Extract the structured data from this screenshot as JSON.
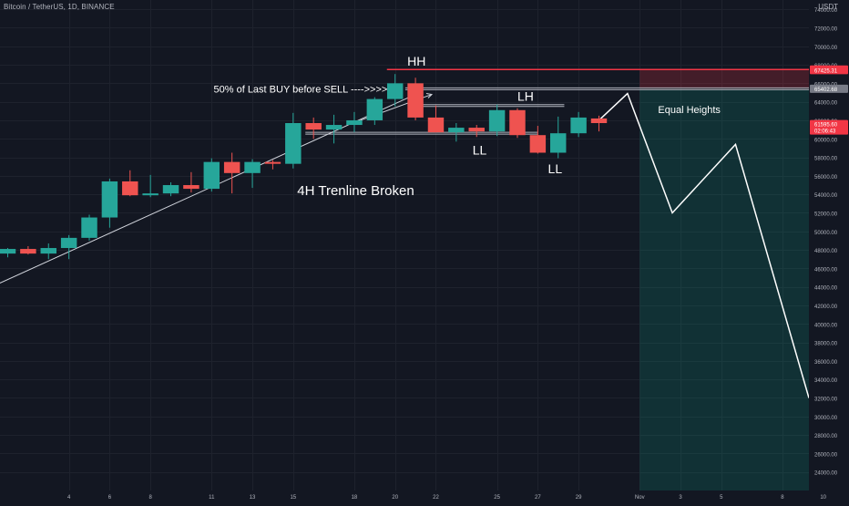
{
  "header": {
    "symbol": "Bitcoin / TetherUS, 1D, BINANCE",
    "currency": "USDT"
  },
  "chart_data": {
    "type": "candlestick",
    "ylim": [
      22000,
      75000
    ],
    "y_ticks": [
      24000,
      26000,
      28000,
      30000,
      32000,
      34000,
      36000,
      38000,
      40000,
      42000,
      44000,
      46000,
      48000,
      50000,
      52000,
      54000,
      56000,
      58000,
      60000,
      62000,
      64000,
      66000,
      68000,
      70000,
      72000,
      74000
    ],
    "y_tick_labels": [
      "24000.00",
      "26000.00",
      "28000.00",
      "30000.00",
      "32000.00",
      "34000.00",
      "36000.00",
      "38000.00",
      "40000.00",
      "42000.00",
      "44000.00",
      "46000.00",
      "48000.00",
      "50000.00",
      "52000.00",
      "54000.00",
      "56000.00",
      "58000.00",
      "60000.00",
      "62000.00",
      "64000.00",
      "66000.00",
      "68000.00",
      "70000.00",
      "72000.00",
      "74000.00"
    ],
    "x_ticks": [
      {
        "label": "4",
        "day": 4
      },
      {
        "label": "6",
        "day": 6
      },
      {
        "label": "8",
        "day": 8
      },
      {
        "label": "11",
        "day": 11
      },
      {
        "label": "13",
        "day": 13
      },
      {
        "label": "15",
        "day": 15
      },
      {
        "label": "18",
        "day": 18
      },
      {
        "label": "20",
        "day": 20
      },
      {
        "label": "22",
        "day": 22
      },
      {
        "label": "25",
        "day": 25
      },
      {
        "label": "27",
        "day": 27
      },
      {
        "label": "29",
        "day": 29
      },
      {
        "label": "Nov",
        "day": 32
      },
      {
        "label": "3",
        "day": 34
      },
      {
        "label": "5",
        "day": 36
      },
      {
        "label": "8",
        "day": 39
      },
      {
        "label": "10",
        "day": 41
      }
    ],
    "candles": [
      {
        "day": 1,
        "open": 47600,
        "high": 48200,
        "low": 47200,
        "close": 48100
      },
      {
        "day": 2,
        "open": 48100,
        "high": 48400,
        "low": 47500,
        "close": 47600
      },
      {
        "day": 3,
        "open": 47600,
        "high": 48700,
        "low": 47000,
        "close": 48200
      },
      {
        "day": 4,
        "open": 48200,
        "high": 49600,
        "low": 47000,
        "close": 49300
      },
      {
        "day": 5,
        "open": 49300,
        "high": 51800,
        "low": 49000,
        "close": 51500
      },
      {
        "day": 6,
        "open": 51500,
        "high": 55700,
        "low": 50400,
        "close": 55400
      },
      {
        "day": 7,
        "open": 55400,
        "high": 56600,
        "low": 53800,
        "close": 53900
      },
      {
        "day": 8,
        "open": 53900,
        "high": 56100,
        "low": 53700,
        "close": 54100
      },
      {
        "day": 9,
        "open": 54100,
        "high": 55300,
        "low": 53800,
        "close": 55000
      },
      {
        "day": 10,
        "open": 55000,
        "high": 56400,
        "low": 54200,
        "close": 54600
      },
      {
        "day": 11,
        "open": 54600,
        "high": 57900,
        "low": 54300,
        "close": 57500
      },
      {
        "day": 12,
        "open": 57500,
        "high": 58500,
        "low": 54100,
        "close": 56300
      },
      {
        "day": 13,
        "open": 56300,
        "high": 57800,
        "low": 54700,
        "close": 57500
      },
      {
        "day": 14,
        "open": 57500,
        "high": 57700,
        "low": 56700,
        "close": 57300
      },
      {
        "day": 15,
        "open": 57300,
        "high": 62800,
        "low": 56800,
        "close": 61700
      },
      {
        "day": 16,
        "open": 61700,
        "high": 62300,
        "low": 60000,
        "close": 61000
      },
      {
        "day": 17,
        "open": 61000,
        "high": 62600,
        "low": 59500,
        "close": 61500
      },
      {
        "day": 18,
        "open": 61500,
        "high": 62900,
        "low": 60700,
        "close": 62000
      },
      {
        "day": 19,
        "open": 62000,
        "high": 64500,
        "low": 61500,
        "close": 64300
      },
      {
        "day": 20,
        "open": 64300,
        "high": 67000,
        "low": 63500,
        "close": 66000
      },
      {
        "day": 21,
        "open": 66000,
        "high": 66600,
        "low": 62000,
        "close": 62300
      },
      {
        "day": 22,
        "open": 62300,
        "high": 63600,
        "low": 60700,
        "close": 60700
      },
      {
        "day": 23,
        "open": 60700,
        "high": 61700,
        "low": 59700,
        "close": 61200
      },
      {
        "day": 24,
        "open": 61200,
        "high": 61500,
        "low": 60200,
        "close": 60800
      },
      {
        "day": 25,
        "open": 60800,
        "high": 63700,
        "low": 60300,
        "close": 63100
      },
      {
        "day": 26,
        "open": 63100,
        "high": 63300,
        "low": 60100,
        "close": 60400
      },
      {
        "day": 27,
        "open": 60400,
        "high": 61400,
        "low": 58400,
        "close": 58500
      },
      {
        "day": 28,
        "open": 58500,
        "high": 62400,
        "low": 57900,
        "close": 60600
      },
      {
        "day": 29,
        "open": 60600,
        "high": 62900,
        "low": 60200,
        "close": 62300
      },
      {
        "day": 30,
        "open": 62200,
        "high": 62500,
        "low": 60800,
        "close": 61700
      }
    ],
    "price_labels": [
      {
        "value": 67489.29,
        "text": "67489.29",
        "color": "#f23645"
      },
      {
        "value": 67425.31,
        "text": "67425.31",
        "color": "#f23645"
      },
      {
        "value": 65402.68,
        "text": "65402.68",
        "color": "#787b86"
      },
      {
        "value": 61595.6,
        "text": "61595.60",
        "sub": "02:06:43",
        "color": "#f23645"
      }
    ],
    "annotations": [
      {
        "text": "HH",
        "day": 20.6,
        "value": 67900,
        "size": 14
      },
      {
        "text": "LH",
        "day": 26,
        "value": 64100,
        "size": 14
      },
      {
        "text": "LL",
        "day": 23.8,
        "value": 58300,
        "size": 14
      },
      {
        "text": "LL",
        "day": 27.5,
        "value": 56300,
        "size": 14
      },
      {
        "text": "Equal Heights",
        "day": 32.9,
        "value": 62800,
        "size": 11
      },
      {
        "text": "50% of Last BUY before SELL ---->>>>",
        "day": 11.1,
        "value": 65000,
        "size": 11
      },
      {
        "text": "4H Trenline Broken",
        "day": 15.2,
        "value": 53900,
        "size": 15
      }
    ],
    "projection_path": [
      {
        "day": 30,
        "value": 62000
      },
      {
        "day": 31.4,
        "value": 64900
      },
      {
        "day": 33.6,
        "value": 52000
      },
      {
        "day": 36.7,
        "value": 59400
      },
      {
        "day": 40.3,
        "value": 32000
      }
    ],
    "trendline": [
      {
        "day": -0.3,
        "value": 43500
      },
      {
        "day": 21,
        "value": 64800
      }
    ],
    "hlines": [
      {
        "from_day": 19.6,
        "value": 67489.29,
        "color": "#f23645"
      },
      {
        "from_day": 20.5,
        "value": 65402.68,
        "color": "#b2b5be"
      },
      {
        "from_day": 21.3,
        "value": 63600,
        "color": "#b2b5be",
        "to_day": 28.3
      },
      {
        "from_day": 15.6,
        "value": 60600,
        "color": "#b2b5be",
        "to_day": 27
      }
    ],
    "position_zones": [
      {
        "from_day": 32,
        "top": 67489.29,
        "bottom": 65402.68,
        "color": "#f23645",
        "opacity": 0.22
      },
      {
        "from_day": 32,
        "top": 65402.68,
        "bottom": 22000,
        "color": "#089981",
        "opacity": 0.2
      }
    ]
  }
}
